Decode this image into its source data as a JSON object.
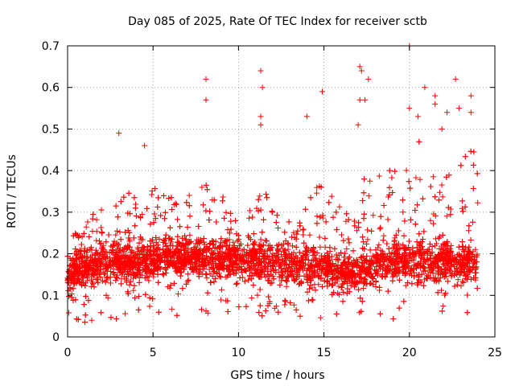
{
  "chart_data": {
    "type": "scatter",
    "title": "Day 085 of 2025, Rate Of TEC Index for receiver sctb",
    "xlabel": "GPS time / hours",
    "ylabel": "ROTI / TECUs",
    "xlim": [
      0,
      25
    ],
    "ylim": [
      0,
      0.7
    ],
    "x_ticks": [
      0,
      5,
      10,
      15,
      20,
      25
    ],
    "x_tick_labels": [
      "0",
      "5",
      "10",
      "15",
      "20",
      "25"
    ],
    "y_ticks": [
      0,
      0.1,
      0.2,
      0.3,
      0.4,
      0.5,
      0.6,
      0.7
    ],
    "y_tick_labels": [
      "0",
      "0.1",
      "0.2",
      "0.3",
      "0.4",
      "0.5",
      "0.6",
      "0.7"
    ],
    "grid": true,
    "marker": "+",
    "color": "#ff0000",
    "x_data_range": [
      0,
      24
    ],
    "envelope_hourly_typical_max": [
      0.25,
      0.3,
      0.34,
      0.36,
      0.38,
      0.36,
      0.32,
      0.38,
      0.4,
      0.33,
      0.32,
      0.38,
      0.3,
      0.28,
      0.38,
      0.34,
      0.3,
      0.4,
      0.42,
      0.4,
      0.48,
      0.38,
      0.4,
      0.45
    ],
    "envelope_hourly_typical_min": [
      0.02,
      0.03,
      0.04,
      0.04,
      0.04,
      0.05,
      0.05,
      0.05,
      0.05,
      0.05,
      0.05,
      0.04,
      0.04,
      0.03,
      0.03,
      0.02,
      0.02,
      0.02,
      0.04,
      0.04,
      0.04,
      0.04,
      0.04,
      0.04
    ],
    "outliers": [
      {
        "x": 3.0,
        "y": 0.49
      },
      {
        "x": 4.5,
        "y": 0.46
      },
      {
        "x": 8.1,
        "y": 0.62
      },
      {
        "x": 8.1,
        "y": 0.57
      },
      {
        "x": 11.3,
        "y": 0.64
      },
      {
        "x": 11.4,
        "y": 0.6
      },
      {
        "x": 11.3,
        "y": 0.53
      },
      {
        "x": 11.3,
        "y": 0.51
      },
      {
        "x": 14.0,
        "y": 0.53
      },
      {
        "x": 14.9,
        "y": 0.59
      },
      {
        "x": 17.1,
        "y": 0.65
      },
      {
        "x": 17.2,
        "y": 0.64
      },
      {
        "x": 17.6,
        "y": 0.62
      },
      {
        "x": 17.1,
        "y": 0.57
      },
      {
        "x": 17.4,
        "y": 0.57
      },
      {
        "x": 17.0,
        "y": 0.51
      },
      {
        "x": 20.0,
        "y": 0.7
      },
      {
        "x": 20.9,
        "y": 0.6
      },
      {
        "x": 21.5,
        "y": 0.58
      },
      {
        "x": 21.5,
        "y": 0.56
      },
      {
        "x": 22.7,
        "y": 0.62
      },
      {
        "x": 23.6,
        "y": 0.58
      },
      {
        "x": 23.6,
        "y": 0.54
      },
      {
        "x": 20.5,
        "y": 0.53
      },
      {
        "x": 22.2,
        "y": 0.54
      },
      {
        "x": 22.9,
        "y": 0.55
      },
      {
        "x": 21.9,
        "y": 0.5
      },
      {
        "x": 20.0,
        "y": 0.55
      }
    ]
  }
}
